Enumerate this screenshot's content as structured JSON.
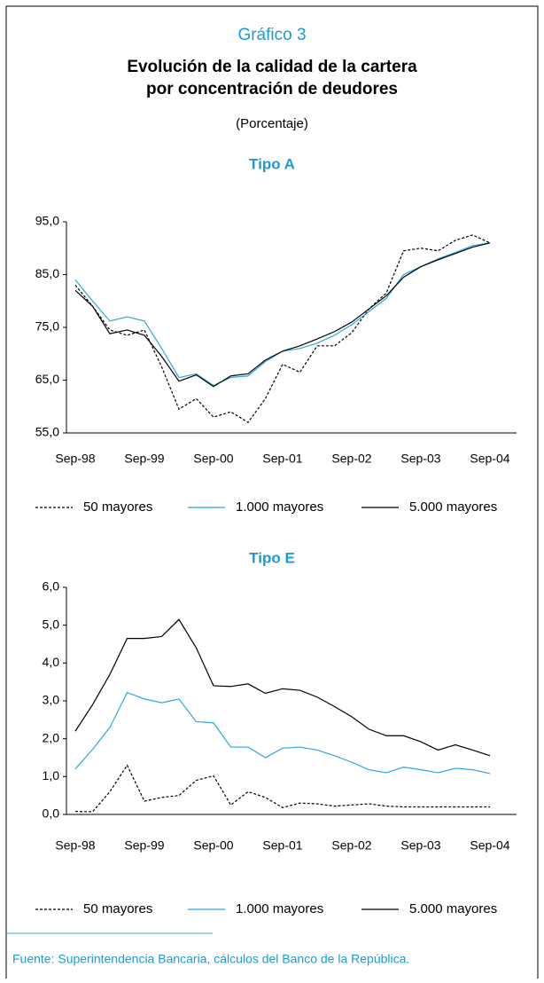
{
  "figure_label": "Gráfico 3",
  "title": [
    "Evolución de la calidad de la cartera",
    "por concentración de deudores"
  ],
  "unit": "(Porcentaje)",
  "source": "Fuente: Superintendencia Bancaria, cálculos del Banco de la República.",
  "chart_data": [
    {
      "type": "line",
      "title": "Tipo A",
      "categories": [
        "Sep-98",
        null,
        null,
        null,
        "Sep-99",
        null,
        null,
        null,
        "Sep-00",
        null,
        null,
        null,
        "Sep-01",
        null,
        null,
        null,
        "Sep-02",
        null,
        null,
        null,
        "Sep-03",
        null,
        null,
        null,
        "Sep-04"
      ],
      "ylim": [
        55,
        95
      ],
      "yticks": [
        {
          "value": 55,
          "label": "55,0"
        },
        {
          "value": 65,
          "label": "65,0"
        },
        {
          "value": 75,
          "label": "75,0"
        },
        {
          "value": 85,
          "label": "85,0"
        },
        {
          "value": 95,
          "label": "95,0"
        }
      ],
      "series": [
        {
          "name": "50 mayores",
          "color": "#000000",
          "style": "dashed",
          "values": [
            83,
            79,
            74.5,
            73.5,
            74.5,
            67.5,
            59.5,
            61.5,
            58,
            59,
            57,
            61.5,
            68,
            66.5,
            71.5,
            71.5,
            74,
            78.5,
            81.5,
            89.5,
            90,
            89.5,
            91.5,
            92.5,
            91
          ]
        },
        {
          "name": "1.000 mayores",
          "color": "#29a8df",
          "style": "solid",
          "values": [
            84,
            80,
            76.2,
            77,
            76.2,
            71,
            65.5,
            66.2,
            64,
            65.5,
            65.8,
            68.5,
            70.5,
            71,
            72,
            73.5,
            75.5,
            78,
            80.5,
            85,
            86.5,
            88,
            89.2,
            90.5,
            91
          ]
        },
        {
          "name": "5.000 mayores",
          "color": "#000000",
          "style": "solid",
          "values": [
            82,
            79,
            73.8,
            74.5,
            73.5,
            69.5,
            64.8,
            66,
            63.8,
            65.8,
            66.2,
            68.8,
            70.5,
            71.5,
            72.8,
            74.2,
            76,
            78.5,
            81,
            84.5,
            86.5,
            87.8,
            89,
            90.2,
            91
          ]
        }
      ]
    },
    {
      "type": "line",
      "title": "Tipo E",
      "categories": [
        "Sep-98",
        null,
        null,
        null,
        "Sep-99",
        null,
        null,
        null,
        "Sep-00",
        null,
        null,
        null,
        "Sep-01",
        null,
        null,
        null,
        "Sep-02",
        null,
        null,
        null,
        "Sep-03",
        null,
        null,
        null,
        "Sep-04"
      ],
      "ylim": [
        0,
        6
      ],
      "yticks": [
        {
          "value": 0,
          "label": "0,0"
        },
        {
          "value": 1,
          "label": "1,0"
        },
        {
          "value": 2,
          "label": "2,0"
        },
        {
          "value": 3,
          "label": "3,0"
        },
        {
          "value": 4,
          "label": "4,0"
        },
        {
          "value": 5,
          "label": "5,0"
        },
        {
          "value": 6,
          "label": "6,0"
        }
      ],
      "series": [
        {
          "name": "50 mayores",
          "color": "#000000",
          "style": "dashed",
          "values": [
            0.08,
            0.07,
            0.6,
            1.3,
            0.35,
            0.45,
            0.5,
            0.9,
            1.02,
            0.25,
            0.6,
            0.45,
            0.18,
            0.3,
            0.28,
            0.22,
            0.25,
            0.28,
            0.22,
            0.2,
            0.2,
            0.2,
            0.2,
            0.2,
            0.2
          ]
        },
        {
          "name": "1.000 mayores",
          "color": "#29a8df",
          "style": "solid",
          "values": [
            1.2,
            1.72,
            2.3,
            3.22,
            3.05,
            2.95,
            3.05,
            2.45,
            2.42,
            1.78,
            1.78,
            1.5,
            1.75,
            1.78,
            1.7,
            1.55,
            1.38,
            1.18,
            1.1,
            1.25,
            1.18,
            1.1,
            1.22,
            1.18,
            1.08
          ]
        },
        {
          "name": "5.000 mayores",
          "color": "#000000",
          "style": "solid",
          "values": [
            2.2,
            2.9,
            3.7,
            4.65,
            4.65,
            4.7,
            5.15,
            4.4,
            3.4,
            3.38,
            3.45,
            3.2,
            3.32,
            3.28,
            3.1,
            2.85,
            2.58,
            2.25,
            2.08,
            2.08,
            1.92,
            1.7,
            1.84,
            1.7,
            1.55
          ]
        }
      ]
    }
  ]
}
